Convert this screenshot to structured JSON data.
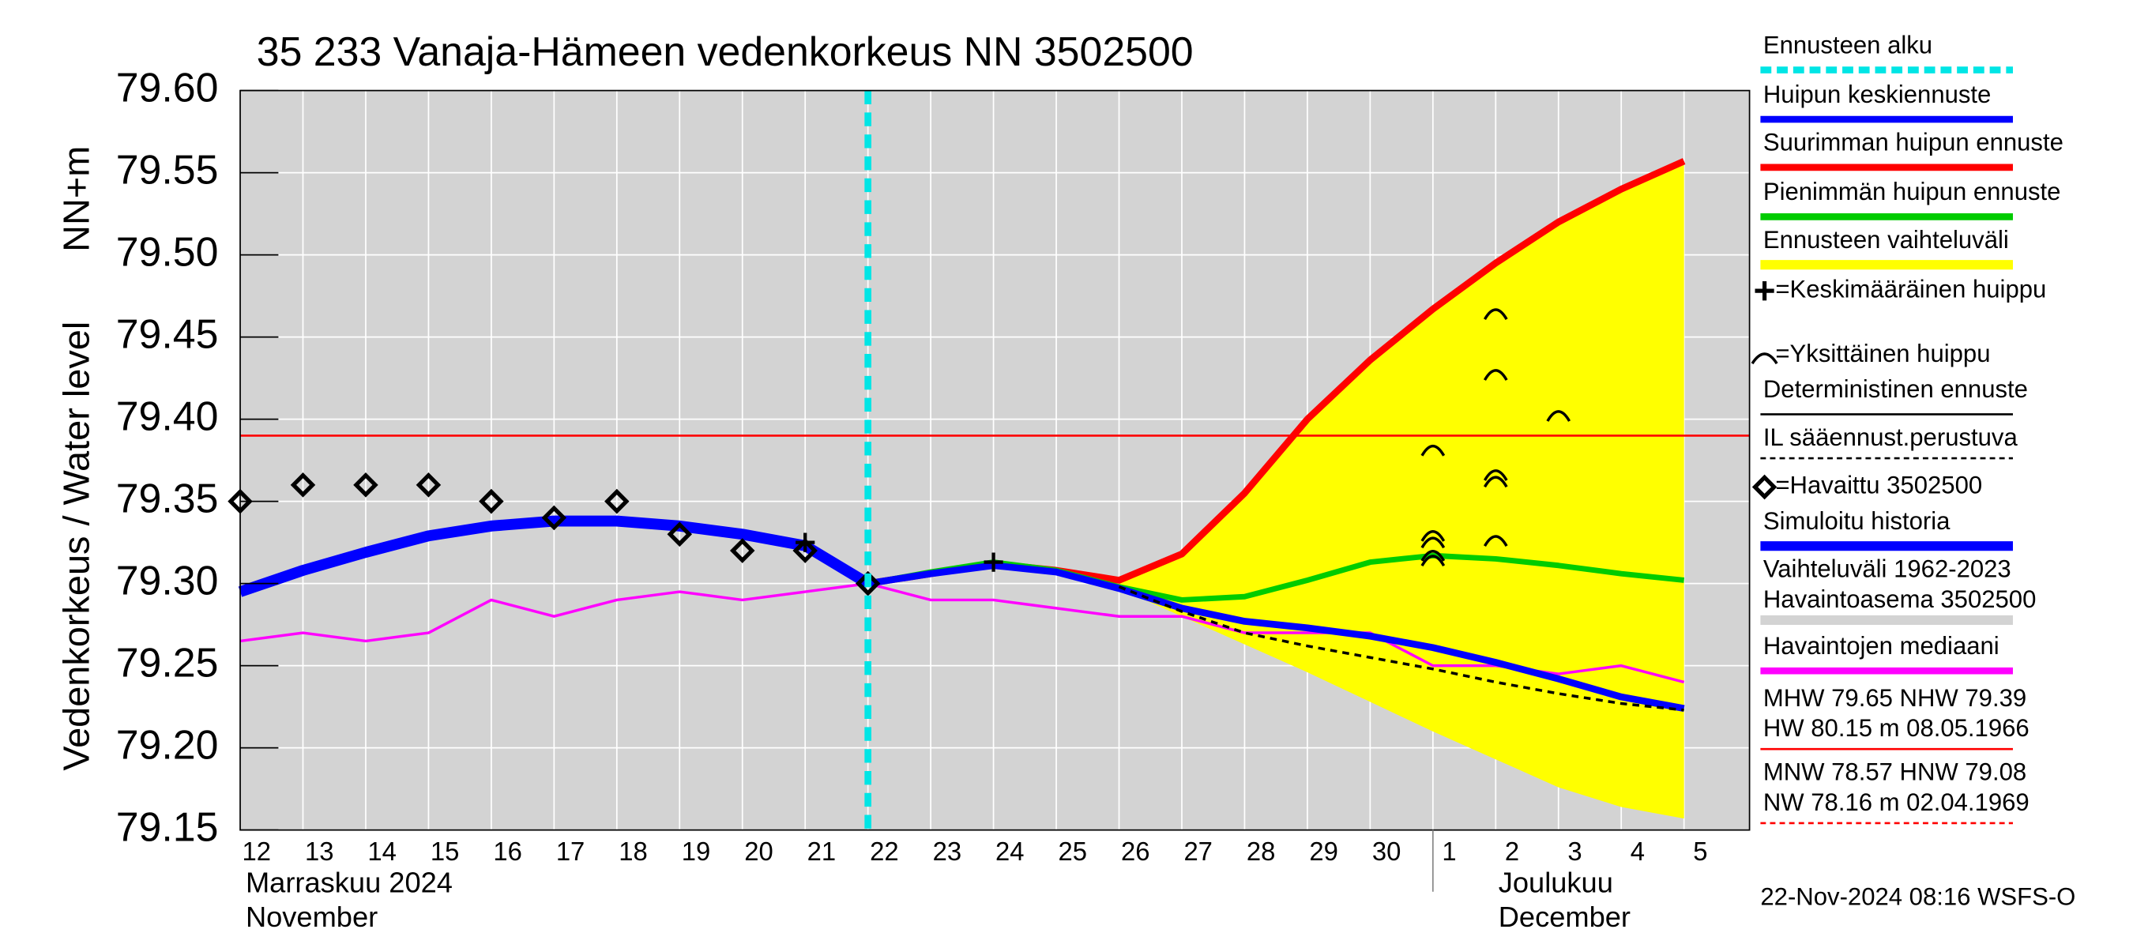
{
  "chart_data": {
    "type": "line",
    "title": "35 233 Vanaja-Hämeen vedenkorkeus NN 3502500",
    "y_label": "Vedenkorkeus / Water level",
    "y_unit": "NN+m",
    "month_labels": [
      {
        "lines": [
          "Marraskuu 2024",
          "November"
        ],
        "at": "12"
      },
      {
        "lines": [
          "Joulukuu",
          "December"
        ],
        "at": "1"
      }
    ],
    "timestamp": "22-Nov-2024 08:16 WSFS-O",
    "categories": [
      "12",
      "13",
      "14",
      "15",
      "16",
      "17",
      "18",
      "19",
      "20",
      "21",
      "22",
      "23",
      "24",
      "25",
      "26",
      "27",
      "28",
      "29",
      "30",
      "1",
      "2",
      "3",
      "4",
      "5"
    ],
    "ylim": [
      79.15,
      79.6
    ],
    "yticks": [
      79.15,
      {
        "value": 79.2,
        "label": "79.20"
      },
      79.25,
      {
        "value": 79.3,
        "label": "79.30"
      },
      79.35,
      {
        "value": 79.4,
        "label": "79.40"
      },
      79.45,
      {
        "value": 79.5,
        "label": "79.50"
      },
      79.55,
      {
        "value": 79.6,
        "label": "79.60"
      }
    ],
    "grid": true,
    "forecast_start": {
      "label": "Ennusteen alku",
      "at": "22",
      "color": "#00e5e5"
    },
    "reference_line": {
      "value": 79.39,
      "color": "#ff0000"
    },
    "series": [
      {
        "name": "Simuloitu historia",
        "color": "#0000ff",
        "kind": "line",
        "width": 8,
        "values": [
          79.295,
          79.308,
          79.319,
          79.329,
          79.335,
          79.338,
          79.338,
          79.335,
          79.33,
          79.323,
          79.3,
          null,
          null,
          null,
          null,
          null,
          null,
          null,
          null,
          null,
          null,
          null,
          null,
          null
        ]
      },
      {
        "name": "Huipun keskiennuste",
        "color": "#0000ff",
        "kind": "line",
        "width": 5,
        "values": [
          null,
          null,
          null,
          null,
          null,
          null,
          null,
          null,
          null,
          null,
          79.3,
          79.306,
          79.311,
          79.307,
          79.297,
          79.285,
          79.277,
          79.273,
          79.268,
          79.261,
          79.252,
          79.242,
          79.231,
          79.224
        ]
      },
      {
        "name": "Suurimman huipun ennuste",
        "color": "#ff0000",
        "kind": "line",
        "width": 5,
        "values": [
          null,
          null,
          null,
          null,
          null,
          null,
          null,
          null,
          null,
          null,
          79.3,
          79.306,
          79.312,
          79.308,
          79.302,
          79.318,
          79.355,
          79.4,
          79.436,
          79.467,
          79.495,
          79.52,
          79.54,
          79.557
        ]
      },
      {
        "name": "Pienimmän huipun ennuste",
        "color": "#00cc00",
        "kind": "line",
        "width": 4,
        "values": [
          null,
          null,
          null,
          null,
          null,
          null,
          null,
          null,
          null,
          null,
          79.3,
          79.307,
          79.313,
          79.308,
          79.298,
          79.29,
          79.292,
          79.302,
          79.313,
          79.317,
          79.315,
          79.311,
          79.306,
          79.302
        ]
      },
      {
        "name": "Ennusteen vaihteluväli",
        "color": "#ffff00",
        "kind": "area",
        "values": [
          null,
          null,
          null,
          null,
          null,
          null,
          null,
          null,
          null,
          null,
          null,
          null,
          null,
          null,
          79.302,
          79.318,
          79.355,
          79.4,
          79.436,
          79.467,
          79.495,
          79.52,
          79.54,
          79.557
        ],
        "lower": [
          null,
          null,
          null,
          null,
          null,
          null,
          null,
          null,
          null,
          null,
          null,
          null,
          null,
          null,
          79.297,
          79.28,
          79.263,
          79.246,
          79.228,
          79.21,
          79.193,
          79.176,
          79.164,
          79.157
        ]
      },
      {
        "name": "Deterministinen ennuste",
        "color": "#000000",
        "kind": "dashed",
        "width": 2,
        "values": [
          null,
          null,
          null,
          null,
          null,
          null,
          null,
          null,
          null,
          null,
          null,
          null,
          null,
          null,
          79.298,
          79.283,
          79.27,
          79.262,
          79.255,
          79.248,
          79.24,
          79.233,
          79.227,
          79.223
        ]
      },
      {
        "name": "Havaintojen mediaani",
        "color": "#ff00ff",
        "kind": "line",
        "width": 2,
        "values": [
          79.265,
          79.27,
          79.265,
          79.27,
          79.29,
          79.28,
          79.29,
          79.295,
          79.29,
          79.295,
          79.3,
          79.29,
          79.29,
          79.285,
          79.28,
          79.28,
          79.27,
          79.27,
          79.27,
          79.25,
          79.25,
          79.245,
          79.25,
          79.24
        ]
      },
      {
        "name": "=Havaittu 3502500",
        "color": "#000000",
        "kind": "diamond",
        "values": [
          79.35,
          79.36,
          79.36,
          79.36,
          79.35,
          79.34,
          79.35,
          79.33,
          79.32,
          79.32,
          79.3,
          null,
          null,
          null,
          null,
          null,
          null,
          null,
          null,
          null,
          null,
          null,
          null,
          null
        ]
      }
    ],
    "mean_peaks": {
      "name": "=Keskimääräinen huippu",
      "x": [
        "21",
        "24"
      ],
      "values": [
        79.325,
        79.313
      ]
    },
    "peaks": {
      "name": "=Yksittäinen huippu",
      "x": [
        "1",
        "1",
        "1",
        "1",
        "1",
        "2",
        "2",
        "2",
        "2",
        "2",
        "3"
      ],
      "values": [
        79.382,
        79.33,
        79.326,
        79.318,
        79.315,
        79.465,
        79.428,
        79.367,
        79.363,
        79.327,
        79.403
      ]
    },
    "legend_extra": [
      {
        "lines": [
          "IL sääennust.perustuva"
        ],
        "color": "#000000",
        "style": "thin-dash"
      },
      {
        "lines": [
          "Vaihteluväli 1962-2023",
          " Havaintoasema 3502500"
        ],
        "color": "#d3d3d3",
        "style": "thick"
      },
      {
        "lines": [
          "MHW  79.65 NHW  79.39",
          "HW  80.15 m 08.05.1966"
        ],
        "color": "#ff0000",
        "style": "thin"
      },
      {
        "lines": [
          "MNW  78.57 HNW  79.08",
          "NW  78.16 m 02.04.1969"
        ],
        "color": "#ff0000",
        "style": "thin-dash"
      }
    ]
  }
}
